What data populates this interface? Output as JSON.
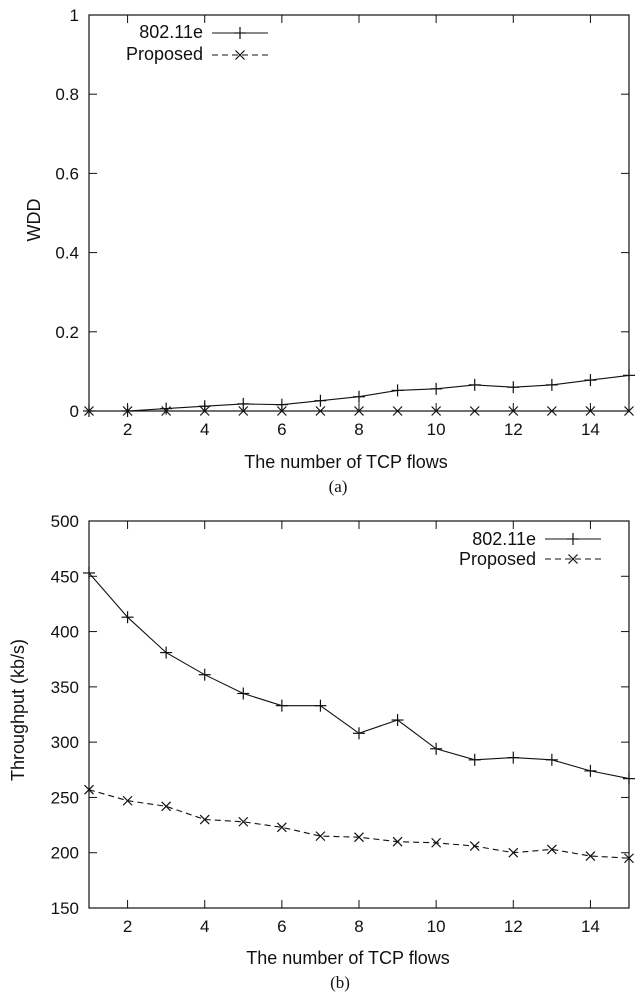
{
  "chart_data": [
    {
      "id": "a",
      "type": "line",
      "caption": "(a)",
      "xlabel": "The number of TCP flows",
      "ylabel": "WDD",
      "xlim": [
        1,
        15
      ],
      "ylim": [
        0,
        1
      ],
      "xticks": [
        2,
        4,
        6,
        8,
        10,
        12,
        14
      ],
      "yticks": [
        0,
        0.2,
        0.4,
        0.6,
        0.8,
        1
      ],
      "ytick_labels": [
        "0",
        "0.2",
        "0.4",
        "0.6",
        "0.8",
        "1"
      ],
      "grid": false,
      "legend_position": "top-left",
      "x": [
        1,
        2,
        3,
        4,
        5,
        6,
        7,
        8,
        9,
        10,
        11,
        12,
        13,
        14,
        15
      ],
      "series": [
        {
          "name": "802.11e",
          "marker": "plus",
          "style": "solid",
          "values": [
            0.0,
            0.0,
            0.006,
            0.012,
            0.018,
            0.016,
            0.026,
            0.036,
            0.052,
            0.056,
            0.066,
            0.06,
            0.066,
            0.078,
            0.09
          ]
        },
        {
          "name": "Proposed",
          "marker": "cross",
          "style": "dashed",
          "values": [
            0,
            0,
            0,
            0,
            0,
            0,
            0,
            0,
            0,
            0,
            0,
            0,
            0,
            0,
            0
          ]
        }
      ]
    },
    {
      "id": "b",
      "type": "line",
      "caption": "(b)",
      "xlabel": "The number of TCP flows",
      "ylabel": "Throughput (kb/s)",
      "xlim": [
        1,
        15
      ],
      "ylim": [
        150,
        500
      ],
      "xticks": [
        2,
        4,
        6,
        8,
        10,
        12,
        14
      ],
      "yticks": [
        150,
        200,
        250,
        300,
        350,
        400,
        450,
        500
      ],
      "ytick_labels": [
        "150",
        "200",
        "250",
        "300",
        "350",
        "400",
        "450",
        "500"
      ],
      "grid": false,
      "legend_position": "top-right",
      "x": [
        1,
        2,
        3,
        4,
        5,
        6,
        7,
        8,
        9,
        10,
        11,
        12,
        13,
        14,
        15
      ],
      "series": [
        {
          "name": "802.11e",
          "marker": "plus",
          "style": "solid",
          "values": [
            453,
            413,
            381,
            361,
            344,
            333,
            333,
            308,
            320,
            294,
            284,
            286,
            284,
            274,
            267
          ]
        },
        {
          "name": "Proposed",
          "marker": "cross",
          "style": "dashed",
          "values": [
            257,
            247,
            242,
            230,
            228,
            223,
            215,
            214,
            210,
            209,
            206,
            200,
            203,
            197,
            195
          ]
        }
      ]
    }
  ],
  "colors": {
    "ink": "#111111",
    "background": "#ffffff"
  }
}
